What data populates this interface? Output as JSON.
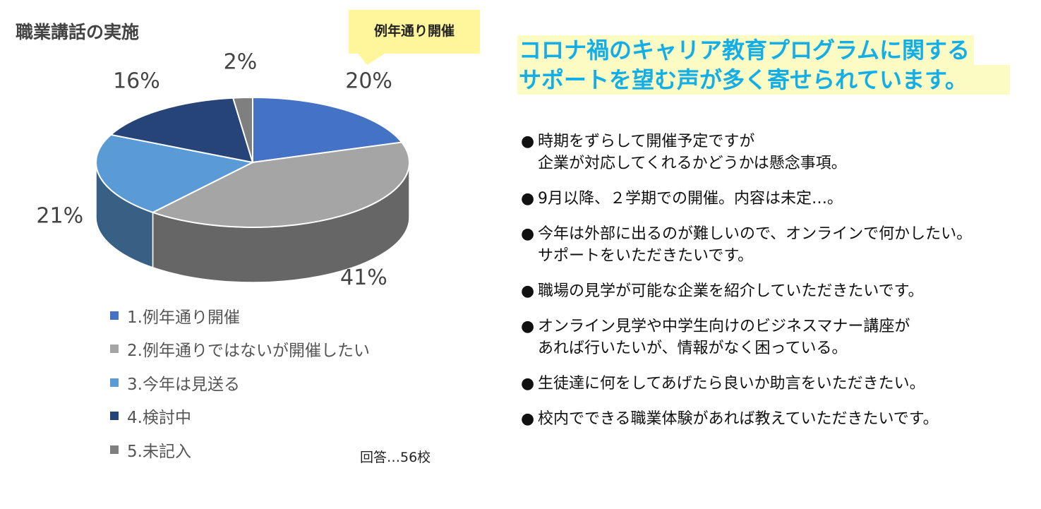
{
  "title": "職業講話の実施",
  "callout": "例年通り開催",
  "headline": {
    "line1": "コロナ禍のキャリア教育プログラムに関する",
    "line2": "サポートを望む声が多く寄せられています。"
  },
  "chart_data": {
    "type": "pie",
    "title": "職業講話の実施",
    "slices": [
      {
        "label": "1.例年通り開催",
        "value": 20,
        "value_label": "20%",
        "color": "#4472c4"
      },
      {
        "label": "2.例年通りではないが開催したい",
        "value": 41,
        "value_label": "41%",
        "color": "#a5a5a5"
      },
      {
        "label": "3.今年は見送る",
        "value": 21,
        "value_label": "21%",
        "color": "#5b9bd5"
      },
      {
        "label": "4.検討中",
        "value": 16,
        "value_label": "16%",
        "color": "#264478"
      },
      {
        "label": "5.未記入",
        "value": 2,
        "value_label": "2%",
        "color": "#7f7f7f"
      }
    ],
    "legend_position": "bottom"
  },
  "note": "回答…56校",
  "comments": [
    {
      "bullet": "●",
      "lines": [
        "時期をずらして開催予定ですが",
        "企業が対応してくれるかどうかは懸念事項。"
      ]
    },
    {
      "bullet": "●",
      "lines": [
        "9月以降、２学期での開催。内容は未定…。"
      ]
    },
    {
      "bullet": "●",
      "lines": [
        "今年は外部に出るのが難しいので、オンラインで何かしたい。",
        "サポートをいただきたいです。"
      ]
    },
    {
      "bullet": "●",
      "lines": [
        "職場の見学が可能な企業を紹介していただきたいです。"
      ]
    },
    {
      "bullet": "●",
      "lines": [
        "オンライン見学や中学生向けのビジネスマナー講座が",
        "あれば行いたいが、情報がなく困っている。"
      ]
    },
    {
      "bullet": "●",
      "lines": [
        "生徒達に何をしてあげたら良いか助言をいただきたい。"
      ]
    },
    {
      "bullet": "●",
      "lines": [
        "校内でできる職業体験があれば教えていただきたいです。"
      ]
    }
  ]
}
